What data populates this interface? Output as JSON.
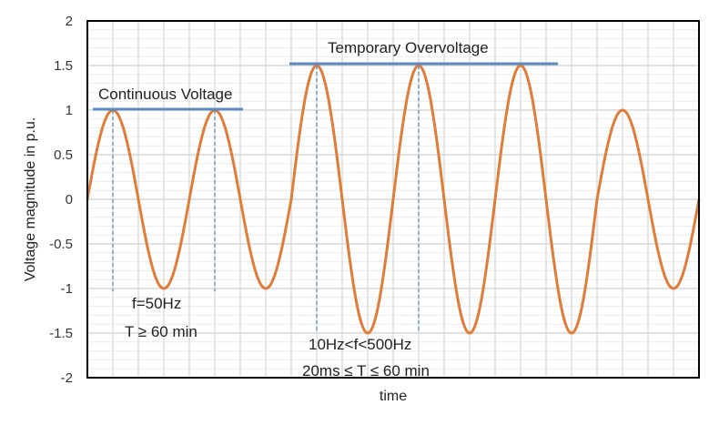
{
  "chart_data": {
    "type": "line",
    "title": "",
    "xlabel": "time",
    "ylabel": "Voltage magnitude in p.u.",
    "ylim": [
      -2,
      2
    ],
    "yticks": [
      "2",
      "1.5",
      "1",
      "0.5",
      "0",
      "-0.5",
      "-1",
      "-1.5",
      "-2"
    ],
    "grid": true,
    "series": [
      {
        "name": "voltage waveform",
        "color": "#E07B39",
        "cycles": [
          {
            "cycle": 1,
            "amplitude": 1.0
          },
          {
            "cycle": 2,
            "amplitude": 1.0
          },
          {
            "cycle": 3,
            "amplitude": 1.5
          },
          {
            "cycle": 4,
            "amplitude": 1.5
          },
          {
            "cycle": 5,
            "amplitude": 1.5
          },
          {
            "cycle": 6,
            "amplitude": 1.0
          }
        ]
      }
    ],
    "annotations": [
      {
        "text": "Continuous Voltage",
        "level": 1.0,
        "color": "#5B8BC0"
      },
      {
        "text": "Temporary Overvoltage",
        "level": 1.5,
        "color": "#5B8BC0"
      },
      {
        "text": "f=50Hz",
        "region": "continuous"
      },
      {
        "text": "T ≥ 60 min",
        "region": "continuous"
      },
      {
        "text": "10Hz<f<500Hz",
        "region": "temporary"
      },
      {
        "text": "20ms ≤ T ≤ 60 min",
        "region": "temporary"
      }
    ]
  },
  "labels": {
    "ylabel": "Voltage magnitude in p.u.",
    "xlabel": "time",
    "continuous": "Continuous Voltage",
    "temporary": "Temporary Overvoltage",
    "cont_f": "f=50Hz",
    "cont_t": "T ≥ 60 min",
    "temp_f": "10Hz<f<500Hz",
    "temp_t": "20ms ≤ T ≤ 60 min"
  },
  "colors": {
    "wave": "#E07B39",
    "level_line": "#5B8BC0",
    "grid": "#D9D9D9",
    "axis": "#000000"
  }
}
